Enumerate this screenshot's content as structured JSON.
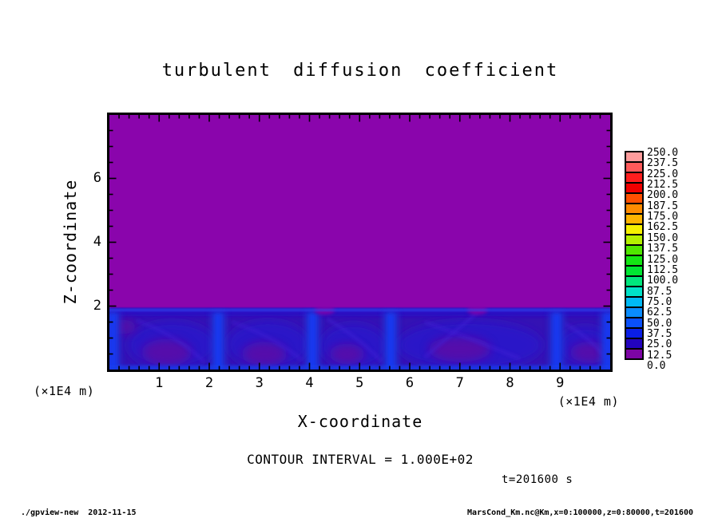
{
  "title": "turbulent diffusion coefficient",
  "annotations": {
    "contour_text": "CONTOUR INTERVAL = 1.000E+02",
    "time_text": "t=201600 s"
  },
  "footer": {
    "left": "./gpview-new  2012-11-15",
    "right": "MarsCond_Km.nc@Km,x=0:100000,z=0:80000,t=201600"
  },
  "chart_data": {
    "type": "heatmap",
    "title": "turbulent diffusion coefficient",
    "xlabel": "X-coordinate",
    "ylabel": "Z-coordinate",
    "x_unit": "(×1E4 m)",
    "z_unit": "(×1E4 m)",
    "x_range": [
      0,
      10
    ],
    "z_range": [
      0,
      8
    ],
    "x_ticks": [
      1,
      2,
      3,
      4,
      5,
      6,
      7,
      8,
      9
    ],
    "z_ticks": [
      2,
      4,
      6
    ],
    "x_minor_step": 0.2,
    "z_minor_step": 0.5,
    "contour_interval": 100,
    "time_s": 201600,
    "colorbar": {
      "level_labels": [
        "0.0",
        "12.5",
        "25.0",
        "37.5",
        "50.0",
        "62.5",
        "75.0",
        "87.5",
        "100.0",
        "112.5",
        "125.0",
        "137.5",
        "150.0",
        "162.5",
        "175.0",
        "187.5",
        "200.0",
        "212.5",
        "225.0",
        "237.5",
        "250.0"
      ],
      "palette": [
        "#7D05A5",
        "#2303BE",
        "#0A1EE6",
        "#0A50FA",
        "#0A8CFF",
        "#00B9F5",
        "#00E1C8",
        "#00E67D",
        "#00E632",
        "#14E614",
        "#50E600",
        "#B4F000",
        "#F5F000",
        "#FFB400",
        "#FF8C00",
        "#FF5000",
        "#F00000",
        "#FF1E1E",
        "#FF5A5A",
        "#FF9C9C"
      ]
    },
    "field_summary": "Km is 0-12.5 (purple) above z=1.9e4 m; a turbulent boundary layer below z=1.9e4 m holds values up to ~50 (blue plumes at convective cell edges, navy cells, violet interiors).",
    "field": {
      "colors": {
        "bg": "#8A05AC",
        "layer_base": "#3512B4",
        "cap": "#2A08C3",
        "cap_line": "#2E49F0",
        "cell": "#2A16C8",
        "patch": "#5A10A8",
        "plume": "#1437F0",
        "plume_glow": "#1E3CE0",
        "bottom_line": "#1440F0",
        "wisp": "#4524D8",
        "tongue": "#8405A8"
      },
      "layer_top_z": 1.93,
      "cells": [
        {
          "x": 1.25,
          "z": 0.78,
          "rx": 0.88,
          "ry": 0.74
        },
        {
          "x": 3.17,
          "z": 0.8,
          "rx": 0.82,
          "ry": 0.74
        },
        {
          "x": 4.88,
          "z": 0.75,
          "rx": 0.66,
          "ry": 0.7
        },
        {
          "x": 7.2,
          "z": 0.78,
          "rx": 1.45,
          "ry": 0.76
        },
        {
          "x": 9.5,
          "z": 0.72,
          "rx": 0.55,
          "ry": 0.65
        }
      ],
      "patches": [
        {
          "x": 1.15,
          "z": 0.55,
          "rx": 0.5,
          "ry": 0.42
        },
        {
          "x": 3.1,
          "z": 0.5,
          "rx": 0.45,
          "ry": 0.38
        },
        {
          "x": 4.75,
          "z": 0.5,
          "rx": 0.35,
          "ry": 0.32
        },
        {
          "x": 7.0,
          "z": 0.65,
          "rx": 0.62,
          "ry": 0.4
        },
        {
          "x": 9.6,
          "z": 0.55,
          "rx": 0.4,
          "ry": 0.33
        },
        {
          "x": 0.25,
          "z": 1.35,
          "rx": 0.3,
          "ry": 0.22
        }
      ],
      "plumes_x": [
        0.08,
        2.18,
        4.06,
        5.62,
        8.93,
        9.95
      ],
      "cap_dips_x": [
        4.3,
        7.35
      ],
      "wisps": [
        {
          "x1": 0.55,
          "z1": 1.55,
          "cx": 1.35,
          "cz": 1.1,
          "x2": 1.9,
          "z2": 0.25
        },
        {
          "x1": 2.45,
          "z1": 1.5,
          "cx": 3.3,
          "cz": 1.05,
          "x2": 3.85,
          "z2": 0.3
        },
        {
          "x1": 4.35,
          "z1": 1.6,
          "cx": 5.0,
          "cz": 1.0,
          "x2": 5.45,
          "z2": 0.25
        },
        {
          "x1": 6.3,
          "z1": 1.5,
          "cx": 7.2,
          "cz": 1.0,
          "x2": 8.2,
          "z2": 0.35
        },
        {
          "x1": 7.35,
          "z1": 1.8,
          "cx": 6.9,
          "cz": 1.2,
          "x2": 6.3,
          "z2": 0.4
        },
        {
          "x1": 9.1,
          "z1": 1.45,
          "cx": 9.6,
          "cz": 1.0,
          "x2": 9.9,
          "z2": 0.4
        }
      ]
    }
  }
}
